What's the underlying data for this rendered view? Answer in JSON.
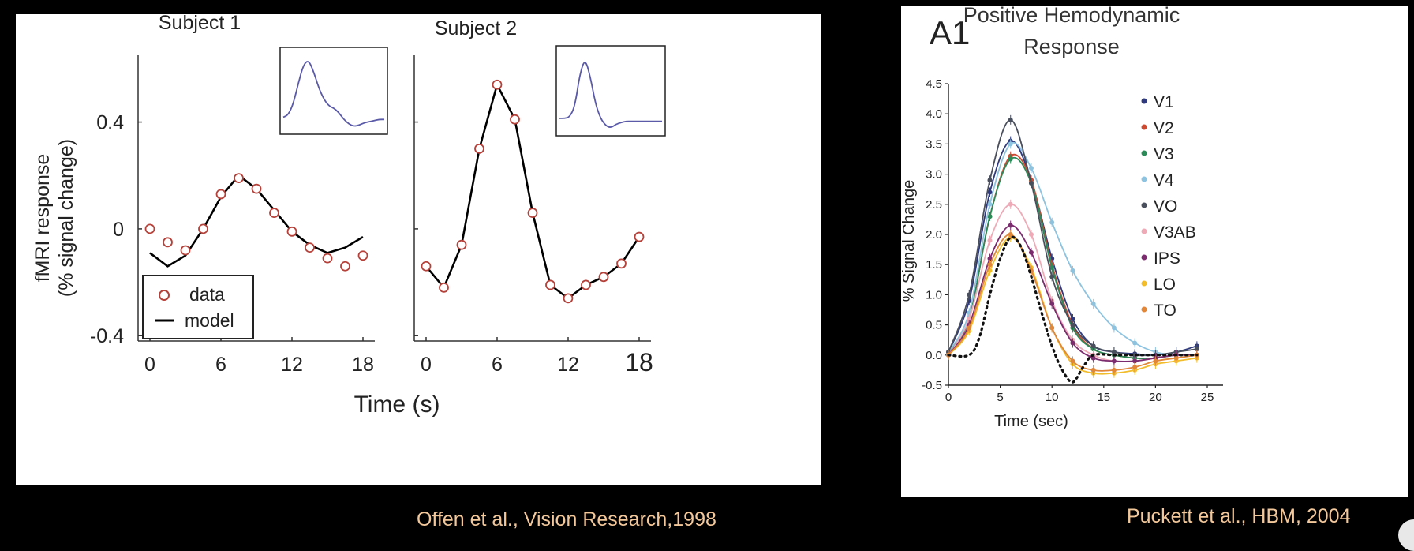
{
  "left_figure": {
    "title_s1": "Subject 1",
    "title_s2": "Subject 2",
    "ylabel_line1": "fMRI response",
    "ylabel_line2": "(% signal change)",
    "xlabel": "Time (s)",
    "legend_data": "data",
    "legend_model": "model",
    "y_ticks": [
      "0.4",
      "0",
      "-0.4"
    ],
    "x_ticks_s1": [
      "0",
      "6",
      "12",
      "18"
    ],
    "x_ticks_s2": [
      "0",
      "6",
      "12",
      "18"
    ],
    "colors": {
      "data": "#b5423a",
      "model": "#000000",
      "inset": "#5a5aa8"
    }
  },
  "right_figure": {
    "panel_label": "A1",
    "title_line1": "Positive Hemodynamic",
    "title_line2": "Response",
    "ylabel": "% Signal Change",
    "xlabel": "Time (sec)",
    "y_ticks": [
      "4.5",
      "4.0",
      "3.5",
      "3.0",
      "2.5",
      "2.0",
      "1.5",
      "1.0",
      "0.5",
      "0.0",
      "-0.5"
    ],
    "x_ticks": [
      "0",
      "5",
      "10",
      "15",
      "20",
      "25"
    ]
  },
  "credits": {
    "left": "Offen et al., Vision Research,1998",
    "right": "Puckett et al., HBM, 2004"
  },
  "chart_data": [
    {
      "type": "line",
      "title": "Subject 1",
      "xlabel": "Time (s)",
      "ylabel": "fMRI response (% signal change)",
      "xlim": [
        -1,
        19
      ],
      "ylim": [
        -0.42,
        0.65
      ],
      "series": [
        {
          "name": "data",
          "x": [
            0,
            1.5,
            3,
            4.5,
            6,
            7.5,
            9,
            10.5,
            12,
            13.5,
            15,
            16.5,
            18
          ],
          "values": [
            0.0,
            -0.05,
            -0.08,
            0.0,
            0.13,
            0.19,
            0.15,
            0.06,
            -0.01,
            -0.07,
            -0.11,
            -0.14,
            -0.1
          ]
        },
        {
          "name": "model",
          "x": [
            0,
            1.5,
            3,
            4.5,
            6,
            7.5,
            9,
            10.5,
            12,
            13.5,
            15,
            16.5,
            18
          ],
          "values": [
            -0.09,
            -0.14,
            -0.1,
            0.0,
            0.12,
            0.2,
            0.15,
            0.07,
            -0.01,
            -0.06,
            -0.09,
            -0.07,
            -0.03
          ]
        }
      ],
      "inset": {
        "x": [
          0,
          1,
          2,
          3,
          4,
          5,
          6,
          7,
          8,
          9,
          10,
          11,
          12,
          13,
          14,
          15,
          16,
          17,
          18,
          19,
          20
        ],
        "values": [
          0.0,
          0.02,
          0.12,
          0.3,
          0.46,
          0.5,
          0.4,
          0.26,
          0.16,
          0.1,
          0.08,
          0.04,
          -0.02,
          -0.06,
          -0.08,
          -0.07,
          -0.05,
          -0.04,
          -0.03,
          -0.02,
          -0.02
        ]
      }
    },
    {
      "type": "line",
      "title": "Subject 2",
      "xlabel": "Time (s)",
      "xlim": [
        -1,
        19
      ],
      "ylim": [
        -0.42,
        0.65
      ],
      "series": [
        {
          "name": "data",
          "x": [
            0,
            1.5,
            3,
            4.5,
            6,
            7.5,
            9,
            10.5,
            12,
            13.5,
            15,
            16.5,
            18
          ],
          "values": [
            -0.14,
            -0.22,
            -0.06,
            0.3,
            0.54,
            0.41,
            0.06,
            -0.21,
            -0.26,
            -0.21,
            -0.18,
            -0.13,
            -0.03
          ]
        },
        {
          "name": "model",
          "x": [
            0,
            1.5,
            3,
            4.5,
            6,
            7.5,
            9,
            10.5,
            12,
            13.5,
            15,
            16.5,
            18
          ],
          "values": [
            -0.14,
            -0.22,
            -0.06,
            0.3,
            0.54,
            0.41,
            0.06,
            -0.21,
            -0.26,
            -0.21,
            -0.18,
            -0.13,
            -0.03
          ]
        }
      ],
      "inset": {
        "x": [
          0,
          1,
          2,
          3,
          4,
          5,
          6,
          7,
          8,
          9,
          10,
          11,
          12,
          13,
          14,
          15,
          16,
          17,
          18,
          19,
          20
        ],
        "values": [
          0.0,
          0.0,
          0.02,
          0.2,
          0.75,
          1.0,
          0.7,
          0.25,
          0.0,
          -0.12,
          -0.16,
          -0.1,
          -0.07,
          -0.05,
          -0.05,
          -0.05,
          -0.05,
          -0.05,
          -0.05,
          -0.05,
          -0.05
        ]
      }
    },
    {
      "type": "line",
      "title": "Positive Hemodynamic Response",
      "xlabel": "Time (sec)",
      "ylabel": "% Signal Change",
      "xlim": [
        0,
        25
      ],
      "ylim": [
        -0.5,
        4.5
      ],
      "legend_position": "right",
      "series": [
        {
          "name": "V1",
          "color": "#2e3a7d",
          "x": [
            0,
            2,
            4,
            6,
            8,
            10,
            12,
            14,
            16,
            18,
            20,
            22,
            24
          ],
          "values": [
            0.05,
            0.9,
            2.7,
            3.55,
            2.9,
            1.6,
            0.6,
            0.15,
            0.05,
            0.02,
            0.0,
            0.05,
            0.15
          ]
        },
        {
          "name": "V2",
          "color": "#cc4a32",
          "x": [
            0,
            2,
            4,
            6,
            8,
            10,
            12,
            14,
            16,
            18,
            20,
            22,
            24
          ],
          "values": [
            0.05,
            0.6,
            2.3,
            3.3,
            2.9,
            1.5,
            0.5,
            0.1,
            0.0,
            -0.05,
            -0.05,
            0.0,
            0.0
          ]
        },
        {
          "name": "V3",
          "color": "#2b8a58",
          "x": [
            0,
            2,
            4,
            6,
            8,
            10,
            12,
            14,
            16,
            18,
            20,
            22,
            24
          ],
          "values": [
            0.05,
            0.6,
            2.3,
            3.25,
            2.85,
            1.45,
            0.45,
            0.1,
            0.0,
            -0.05,
            -0.05,
            0.0,
            0.0
          ]
        },
        {
          "name": "V4",
          "color": "#8ec3e0",
          "x": [
            0,
            2,
            4,
            6,
            8,
            10,
            12,
            14,
            16,
            18,
            20,
            22,
            24
          ],
          "values": [
            0.05,
            0.7,
            2.5,
            3.5,
            3.1,
            2.2,
            1.4,
            0.85,
            0.45,
            0.2,
            0.05,
            0.0,
            0.0
          ]
        },
        {
          "name": "VO",
          "color": "#4a4f5e",
          "x": [
            0,
            2,
            4,
            6,
            8,
            10,
            12,
            14,
            16,
            18,
            20,
            22,
            24
          ],
          "values": [
            0.05,
            1.0,
            2.9,
            3.9,
            2.85,
            1.3,
            0.5,
            0.15,
            0.05,
            0.0,
            0.0,
            0.05,
            0.1
          ]
        },
        {
          "name": "V3AB",
          "color": "#eeaab7",
          "x": [
            0,
            2,
            4,
            6,
            8,
            10,
            12,
            14,
            16,
            18,
            20,
            22,
            24
          ],
          "values": [
            0.0,
            0.6,
            1.9,
            2.5,
            2.0,
            0.9,
            0.25,
            0.0,
            -0.1,
            -0.1,
            -0.05,
            0.0,
            0.0
          ]
        },
        {
          "name": "IPS",
          "color": "#7b2c6e",
          "x": [
            0,
            2,
            4,
            6,
            8,
            10,
            12,
            14,
            16,
            18,
            20,
            22,
            24
          ],
          "values": [
            0.0,
            0.5,
            1.6,
            2.15,
            1.7,
            0.85,
            0.2,
            -0.05,
            -0.1,
            -0.1,
            -0.05,
            0.0,
            0.0
          ]
        },
        {
          "name": "LO",
          "color": "#f2bd2c",
          "x": [
            0,
            2,
            4,
            6,
            8,
            10,
            12,
            14,
            16,
            18,
            20,
            22,
            24
          ],
          "values": [
            0.0,
            0.4,
            1.4,
            1.95,
            1.45,
            0.45,
            -0.15,
            -0.3,
            -0.3,
            -0.25,
            -0.15,
            -0.1,
            -0.05
          ]
        },
        {
          "name": "TO",
          "color": "#e0873a",
          "x": [
            0,
            2,
            4,
            6,
            8,
            10,
            12,
            14,
            16,
            18,
            20,
            22,
            24
          ],
          "values": [
            0.0,
            0.45,
            1.5,
            2.0,
            1.4,
            0.45,
            -0.1,
            -0.25,
            -0.25,
            -0.2,
            -0.1,
            -0.05,
            0.0
          ]
        },
        {
          "x": [
            0,
            2,
            3,
            4,
            5,
            6,
            7,
            8,
            9,
            10,
            11,
            12,
            13,
            14,
            16,
            18,
            20,
            22,
            24
          ],
          "values": [
            0.0,
            0.0,
            0.3,
            1.0,
            1.6,
            1.95,
            1.8,
            1.3,
            0.7,
            0.15,
            -0.25,
            -0.45,
            -0.2,
            0.0,
            0.0,
            0.0,
            0.0,
            0.0,
            0.0
          ]
        }
      ]
    }
  ]
}
